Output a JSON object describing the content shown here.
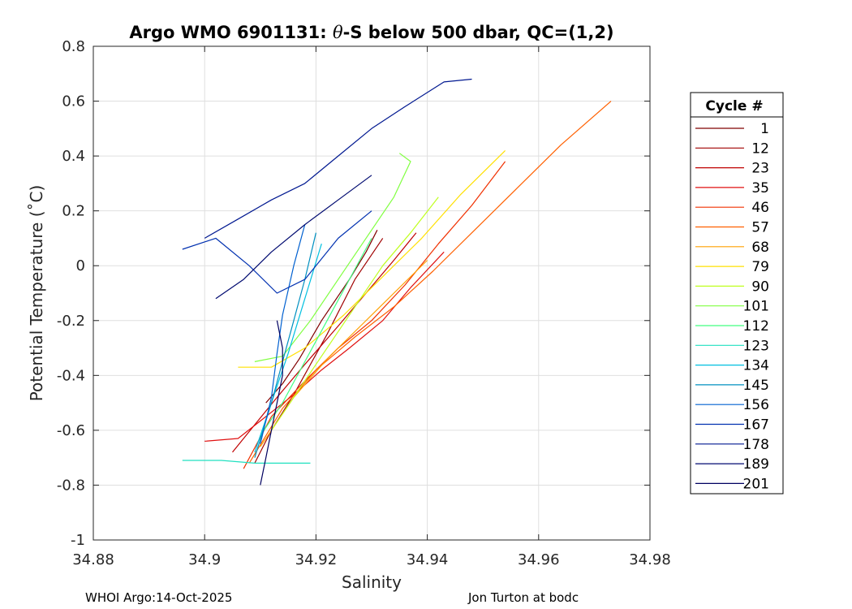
{
  "chart_data": {
    "type": "line",
    "title": "Argo WMO 6901131: θ-S below 500 dbar,  QC=(1,2)",
    "title_parts": {
      "prefix": "Argo WMO 6901131: ",
      "theta": "θ",
      "suffix": "-S below 500 dbar,  QC=(1,2)"
    },
    "xlabel": "Salinity",
    "ylabel": "Potential Temperature (˚C)",
    "xlim": [
      34.88,
      34.98
    ],
    "ylim": [
      -1,
      0.8
    ],
    "xticks": [
      34.88,
      34.9,
      34.92,
      34.94,
      34.96,
      34.98
    ],
    "xtick_labels": [
      "34.88",
      "34.9",
      "34.92",
      "34.94",
      "34.96",
      "34.98"
    ],
    "yticks": [
      -1,
      -0.8,
      -0.6,
      -0.4,
      -0.2,
      0,
      0.2,
      0.4,
      0.6,
      0.8
    ],
    "ytick_labels": [
      "-1",
      "-0.8",
      "-0.6",
      "-0.4",
      "-0.2",
      "0",
      "0.2",
      "0.4",
      "0.6",
      "0.8"
    ],
    "grid": true,
    "legend": {
      "title": "Cycle #",
      "placement": "outside-right",
      "entries": [
        {
          "label": "1",
          "color": "#800000"
        },
        {
          "label": "12",
          "color": "#a00000"
        },
        {
          "label": "23",
          "color": "#c00000"
        },
        {
          "label": "35",
          "color": "#e01010"
        },
        {
          "label": "46",
          "color": "#f03000"
        },
        {
          "label": "57",
          "color": "#ff6000"
        },
        {
          "label": "68",
          "color": "#ffa000"
        },
        {
          "label": "79",
          "color": "#ffe000"
        },
        {
          "label": "90",
          "color": "#c0ff20"
        },
        {
          "label": "101",
          "color": "#80ff40"
        },
        {
          "label": "112",
          "color": "#40ff80"
        },
        {
          "label": "123",
          "color": "#20e0c0"
        },
        {
          "label": "134",
          "color": "#00c0e0"
        },
        {
          "label": "145",
          "color": "#0090c0"
        },
        {
          "label": "156",
          "color": "#0060d0"
        },
        {
          "label": "167",
          "color": "#0030b0"
        },
        {
          "label": "178",
          "color": "#001890"
        },
        {
          "label": "189",
          "color": "#000a70"
        },
        {
          "label": "201",
          "color": "#000060"
        }
      ]
    },
    "series": [
      {
        "name": "1",
        "color": "#800000",
        "x": [
          34.911,
          34.914,
          34.917,
          34.921,
          34.926,
          34.929,
          34.931
        ],
        "y": [
          -0.5,
          -0.43,
          -0.34,
          -0.2,
          -0.05,
          0.05,
          0.13
        ]
      },
      {
        "name": "12",
        "color": "#a00000",
        "x": [
          34.909,
          34.912,
          34.916,
          34.922,
          34.927,
          34.932
        ],
        "y": [
          -0.72,
          -0.6,
          -0.47,
          -0.25,
          -0.05,
          0.1
        ]
      },
      {
        "name": "23",
        "color": "#c00000",
        "x": [
          34.905,
          34.909,
          34.913,
          34.918,
          34.924,
          34.929,
          34.934,
          34.938
        ],
        "y": [
          -0.68,
          -0.58,
          -0.48,
          -0.36,
          -0.22,
          -0.1,
          0.02,
          0.12
        ]
      },
      {
        "name": "35",
        "color": "#e01010",
        "x": [
          34.9,
          34.906,
          34.911,
          34.916,
          34.921,
          34.926,
          34.932,
          34.937,
          34.943
        ],
        "y": [
          -0.64,
          -0.63,
          -0.55,
          -0.47,
          -0.38,
          -0.3,
          -0.2,
          -0.08,
          0.05
        ]
      },
      {
        "name": "46",
        "color": "#f03000",
        "x": [
          34.907,
          34.912,
          34.918,
          34.924,
          34.93,
          34.936,
          34.942,
          34.948,
          34.954
        ],
        "y": [
          -0.74,
          -0.55,
          -0.42,
          -0.3,
          -0.2,
          -0.07,
          0.08,
          0.22,
          0.38
        ]
      },
      {
        "name": "57",
        "color": "#ff6000",
        "x": [
          34.908,
          34.914,
          34.92,
          34.927,
          34.934,
          34.941,
          34.948,
          34.956,
          34.964,
          34.973
        ],
        "y": [
          -0.72,
          -0.52,
          -0.38,
          -0.26,
          -0.15,
          -0.02,
          0.12,
          0.28,
          0.44,
          0.6
        ]
      },
      {
        "name": "68",
        "color": "#ffa000",
        "x": [
          34.91,
          34.916,
          34.922,
          34.928,
          34.934,
          34.94
        ],
        "y": [
          -0.66,
          -0.48,
          -0.34,
          -0.22,
          -0.1,
          0.02
        ]
      },
      {
        "name": "79",
        "color": "#ffe000",
        "x": [
          34.906,
          34.912,
          34.918,
          34.925,
          34.932,
          34.939,
          34.946,
          34.954
        ],
        "y": [
          -0.37,
          -0.37,
          -0.3,
          -0.18,
          -0.04,
          0.1,
          0.26,
          0.42
        ]
      },
      {
        "name": "90",
        "color": "#c0ff20",
        "x": [
          34.912,
          34.917,
          34.922,
          34.927,
          34.932,
          34.937,
          34.942
        ],
        "y": [
          -0.6,
          -0.45,
          -0.3,
          -0.15,
          0.0,
          0.12,
          0.25
        ]
      },
      {
        "name": "101",
        "color": "#80ff40",
        "x": [
          34.909,
          34.914,
          34.919,
          34.924,
          34.929,
          34.934,
          34.937,
          34.935
        ],
        "y": [
          -0.35,
          -0.33,
          -0.2,
          -0.05,
          0.1,
          0.25,
          0.38,
          0.41
        ]
      },
      {
        "name": "112",
        "color": "#40ff80",
        "x": [
          34.91,
          34.914,
          34.918,
          34.922,
          34.926,
          34.93
        ],
        "y": [
          -0.62,
          -0.5,
          -0.35,
          -0.2,
          -0.05,
          0.1
        ]
      },
      {
        "name": "123",
        "color": "#20e0c0",
        "x": [
          34.896,
          34.903,
          34.909,
          34.914,
          34.919
        ],
        "y": [
          -0.71,
          -0.71,
          -0.72,
          -0.72,
          -0.72
        ]
      },
      {
        "name": "134",
        "color": "#00c0e0",
        "x": [
          34.909,
          34.912,
          34.915,
          34.918,
          34.921
        ],
        "y": [
          -0.68,
          -0.5,
          -0.32,
          -0.12,
          0.08
        ]
      },
      {
        "name": "145",
        "color": "#0090c0",
        "x": [
          34.909,
          34.912,
          34.914,
          34.916,
          34.918,
          34.92
        ],
        "y": [
          -0.7,
          -0.5,
          -0.35,
          -0.2,
          -0.05,
          0.12
        ]
      },
      {
        "name": "156",
        "color": "#0060d0",
        "x": [
          34.91,
          34.912,
          34.913,
          34.914,
          34.916,
          34.918
        ],
        "y": [
          -0.65,
          -0.48,
          -0.32,
          -0.18,
          0.0,
          0.15
        ]
      },
      {
        "name": "167",
        "color": "#0030b0",
        "x": [
          34.896,
          34.902,
          34.908,
          34.913,
          34.918,
          34.924,
          34.93
        ],
        "y": [
          0.06,
          0.1,
          0.0,
          -0.1,
          -0.05,
          0.1,
          0.2
        ]
      },
      {
        "name": "178",
        "color": "#001890",
        "x": [
          34.9,
          34.906,
          34.912,
          34.918,
          34.924,
          34.93,
          34.936,
          34.943,
          34.948
        ],
        "y": [
          0.1,
          0.17,
          0.24,
          0.3,
          0.4,
          0.5,
          0.58,
          0.67,
          0.68
        ]
      },
      {
        "name": "189",
        "color": "#000a70",
        "x": [
          34.902,
          34.907,
          34.912,
          34.918,
          34.924,
          34.93
        ],
        "y": [
          -0.12,
          -0.05,
          0.05,
          0.15,
          0.24,
          0.33
        ]
      },
      {
        "name": "201",
        "color": "#000060",
        "x": [
          34.91,
          34.911,
          34.912,
          34.913,
          34.914,
          34.914,
          34.913
        ],
        "y": [
          -0.8,
          -0.7,
          -0.6,
          -0.5,
          -0.4,
          -0.3,
          -0.2
        ]
      }
    ]
  },
  "footer": {
    "left": "WHOI Argo:14-Oct-2025",
    "right": "Jon Turton at bodc"
  }
}
